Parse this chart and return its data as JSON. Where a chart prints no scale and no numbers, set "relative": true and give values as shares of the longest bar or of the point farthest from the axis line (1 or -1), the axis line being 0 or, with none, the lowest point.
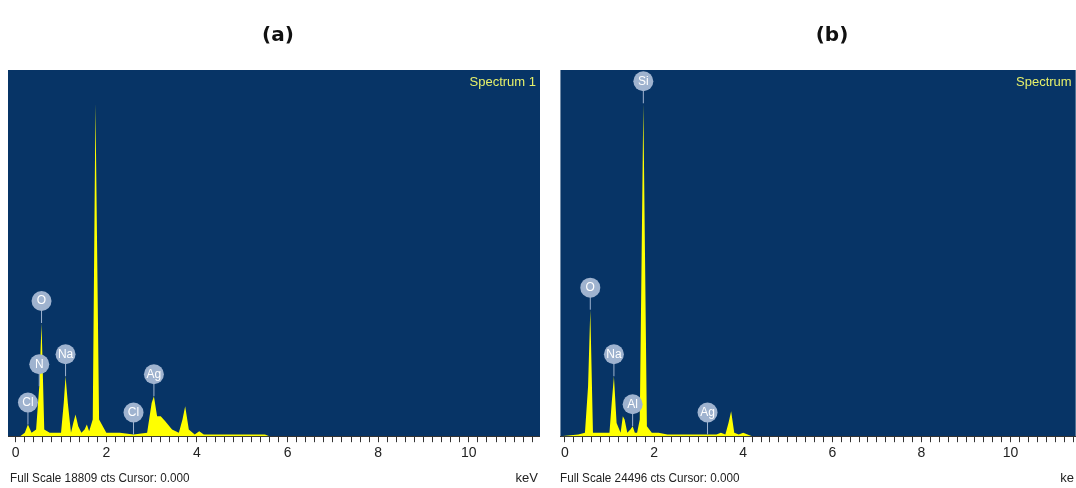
{
  "chart_data": [
    {
      "type": "area",
      "title": "(a)",
      "xlabel": "keV",
      "relative": true,
      "xlim": [
        -0.17,
        11.57
      ],
      "xticks": [
        0,
        {
          "value": 0.2,
          "label": null
        },
        {
          "value": 0.4,
          "label": null
        },
        {
          "value": 0.6,
          "label": null
        },
        {
          "value": 0.8,
          "label": null
        },
        {
          "value": 1,
          "label": null
        },
        {
          "value": 1.2,
          "label": null
        },
        {
          "value": 1.4,
          "label": null
        },
        {
          "value": 1.6,
          "label": null
        },
        {
          "value": 1.8,
          "label": null
        },
        2,
        {
          "value": 2.2,
          "label": null
        },
        {
          "value": 2.4,
          "label": null
        },
        {
          "value": 2.6,
          "label": null
        },
        {
          "value": 2.8,
          "label": null
        },
        {
          "value": 3,
          "label": null
        },
        {
          "value": 3.2,
          "label": null
        },
        {
          "value": 3.4,
          "label": null
        },
        {
          "value": 3.6,
          "label": null
        },
        {
          "value": 3.8,
          "label": null
        },
        4,
        {
          "value": 4.2,
          "label": null
        },
        {
          "value": 4.4,
          "label": null
        },
        {
          "value": 4.6,
          "label": null
        },
        {
          "value": 4.8,
          "label": null
        },
        {
          "value": 5,
          "label": null
        },
        {
          "value": 5.2,
          "label": null
        },
        {
          "value": 5.4,
          "label": null
        },
        {
          "value": 5.6,
          "label": null
        },
        {
          "value": 5.8,
          "label": null
        },
        6,
        {
          "value": 6.2,
          "label": null
        },
        {
          "value": 6.4,
          "label": null
        },
        {
          "value": 6.6,
          "label": null
        },
        {
          "value": 6.8,
          "label": null
        },
        {
          "value": 7,
          "label": null
        },
        {
          "value": 7.2,
          "label": null
        },
        {
          "value": 7.4,
          "label": null
        },
        {
          "value": 7.6,
          "label": null
        },
        {
          "value": 7.8,
          "label": null
        },
        8,
        {
          "value": 8.2,
          "label": null
        },
        {
          "value": 8.4,
          "label": null
        },
        {
          "value": 8.6,
          "label": null
        },
        {
          "value": 8.8,
          "label": null
        },
        {
          "value": 9,
          "label": null
        },
        {
          "value": 9.2,
          "label": null
        },
        {
          "value": 9.4,
          "label": null
        },
        {
          "value": 9.6,
          "label": null
        },
        {
          "value": 9.8,
          "label": null
        },
        10,
        {
          "value": 10.2,
          "label": null
        },
        {
          "value": 10.4,
          "label": null
        },
        {
          "value": 10.6,
          "label": null
        },
        {
          "value": 10.8,
          "label": null
        },
        {
          "value": 11,
          "label": null
        },
        {
          "value": 11.2,
          "label": null
        },
        {
          "value": 11.4,
          "label": null
        }
      ],
      "series": [
        {
          "name": "Spectrum 1",
          "color": "#ffff00",
          "x": [
            -0.1,
            0.1,
            0.2,
            0.27,
            0.35,
            0.45,
            0.52,
            0.57,
            0.63,
            0.75,
            1.0,
            1.06,
            1.1,
            1.15,
            1.22,
            1.27,
            1.32,
            1.38,
            1.45,
            1.52,
            1.57,
            1.62,
            1.7,
            1.76,
            1.84,
            2.0,
            2.3,
            2.6,
            2.9,
            3.0,
            3.05,
            3.12,
            3.2,
            3.3,
            3.45,
            3.6,
            3.68,
            3.74,
            3.82,
            3.95,
            4.05,
            4.15,
            4.4,
            5.0,
            5.5,
            5.6
          ],
          "values": [
            0,
            0,
            0.01,
            0.035,
            0.01,
            0.02,
            0.15,
            0.34,
            0.02,
            0.01,
            0.01,
            0.1,
            0.18,
            0.1,
            0.01,
            0.04,
            0.065,
            0.03,
            0.01,
            0.02,
            0.035,
            0.015,
            0.05,
            1,
            0.05,
            0.01,
            0.01,
            0.005,
            0.01,
            0.1,
            0.12,
            0.06,
            0.06,
            0.045,
            0.02,
            0.01,
            0.05,
            0.09,
            0.02,
            0.005,
            0.015,
            0.005,
            0.005,
            0.005,
            0.005,
            0
          ]
        }
      ],
      "annotations": [
        {
          "text": "Cl",
          "x": 0.27,
          "y": 0.035
        },
        {
          "text": "N",
          "x": 0.52,
          "y": 0.15
        },
        {
          "text": "O",
          "x": 0.57,
          "y": 0.34
        },
        {
          "text": "Na",
          "x": 1.1,
          "y": 0.18
        },
        {
          "text": "Cl",
          "x": 2.6,
          "y": 0.005
        },
        {
          "text": "Ag",
          "x": 3.05,
          "y": 0.12
        },
        "Full Scale 18809 cts Cursor: 0.000"
      ]
    },
    {
      "type": "area",
      "title": "(b)",
      "xlabel": "ke",
      "relative": true,
      "xlim": [
        -0.1,
        11.46
      ],
      "xticks": [
        0,
        {
          "value": 0.2,
          "label": null
        },
        {
          "value": 0.4,
          "label": null
        },
        {
          "value": 0.6,
          "label": null
        },
        {
          "value": 0.8,
          "label": null
        },
        {
          "value": 1,
          "label": null
        },
        {
          "value": 1.2,
          "label": null
        },
        {
          "value": 1.4,
          "label": null
        },
        {
          "value": 1.6,
          "label": null
        },
        {
          "value": 1.8,
          "label": null
        },
        2,
        {
          "value": 2.2,
          "label": null
        },
        {
          "value": 2.4,
          "label": null
        },
        {
          "value": 2.6,
          "label": null
        },
        {
          "value": 2.8,
          "label": null
        },
        {
          "value": 3,
          "label": null
        },
        {
          "value": 3.2,
          "label": null
        },
        {
          "value": 3.4,
          "label": null
        },
        {
          "value": 3.6,
          "label": null
        },
        {
          "value": 3.8,
          "label": null
        },
        4,
        {
          "value": 4.2,
          "label": null
        },
        {
          "value": 4.4,
          "label": null
        },
        {
          "value": 4.6,
          "label": null
        },
        {
          "value": 4.8,
          "label": null
        },
        {
          "value": 5,
          "label": null
        },
        {
          "value": 5.2,
          "label": null
        },
        {
          "value": 5.4,
          "label": null
        },
        {
          "value": 5.6,
          "label": null
        },
        {
          "value": 5.8,
          "label": null
        },
        6,
        {
          "value": 6.2,
          "label": null
        },
        {
          "value": 6.4,
          "label": null
        },
        {
          "value": 6.6,
          "label": null
        },
        {
          "value": 6.8,
          "label": null
        },
        {
          "value": 7,
          "label": null
        },
        {
          "value": 7.2,
          "label": null
        },
        {
          "value": 7.4,
          "label": null
        },
        {
          "value": 7.6,
          "label": null
        },
        {
          "value": 7.8,
          "label": null
        },
        8,
        {
          "value": 8.2,
          "label": null
        },
        {
          "value": 8.4,
          "label": null
        },
        {
          "value": 8.6,
          "label": null
        },
        {
          "value": 8.8,
          "label": null
        },
        {
          "value": 9,
          "label": null
        },
        {
          "value": 9.2,
          "label": null
        },
        {
          "value": 9.4,
          "label": null
        },
        {
          "value": 9.6,
          "label": null
        },
        {
          "value": 9.8,
          "label": null
        },
        10,
        {
          "value": 10.2,
          "label": null
        },
        {
          "value": 10.4,
          "label": null
        },
        {
          "value": 10.6,
          "label": null
        },
        {
          "value": 10.8,
          "label": null
        },
        {
          "value": 11,
          "label": null
        },
        {
          "value": 11.2,
          "label": null
        },
        {
          "value": 11.4,
          "label": null
        }
      ],
      "series": [
        {
          "name": "Spectrum",
          "color": "#ffff00",
          "x": [
            -0.1,
            0.3,
            0.45,
            0.52,
            0.57,
            0.63,
            0.75,
            1.0,
            1.05,
            1.1,
            1.16,
            1.25,
            1.3,
            1.34,
            1.4,
            1.47,
            1.52,
            1.57,
            1.62,
            1.68,
            1.76,
            1.84,
            1.95,
            2.1,
            2.3,
            3.0,
            3.4,
            3.5,
            3.6,
            3.67,
            3.73,
            3.8,
            3.9,
            4.0,
            4.1,
            4.2
          ],
          "values": [
            0,
            0.005,
            0.01,
            0.15,
            0.38,
            0.01,
            0.01,
            0.01,
            0.1,
            0.18,
            0.04,
            0.01,
            0.06,
            0.05,
            0.01,
            0.02,
            0.03,
            0.01,
            0.01,
            0.05,
            1,
            0.03,
            0.01,
            0.01,
            0.005,
            0.005,
            0.005,
            0.01,
            0.005,
            0.04,
            0.075,
            0.01,
            0.005,
            0.01,
            0.005,
            0
          ]
        }
      ],
      "annotations": [
        {
          "text": "O",
          "x": 0.57,
          "y": 0.38
        },
        {
          "text": "Si",
          "x": 1.76,
          "y": 1
        },
        {
          "text": "Na",
          "x": 1.1,
          "y": 0.18
        },
        {
          "text": "Al",
          "x": 1.52,
          "y": 0.03
        },
        {
          "text": "Ag",
          "x": 3.2,
          "y": 0.005
        },
        "Full Scale 24496 cts Cursor: 0.000"
      ]
    }
  ]
}
